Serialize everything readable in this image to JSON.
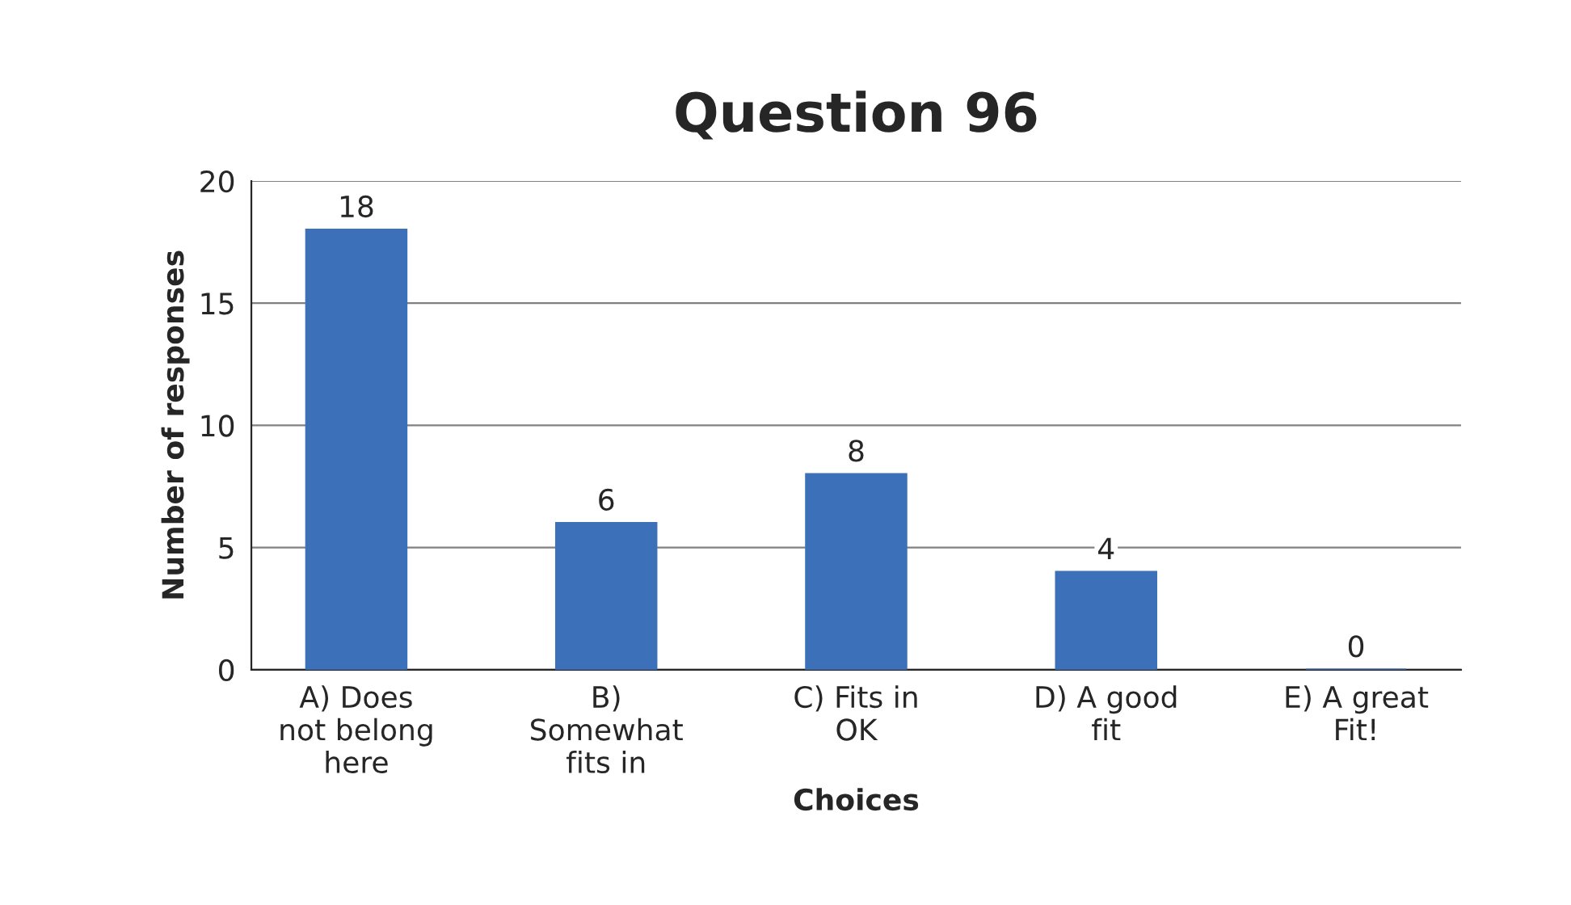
{
  "chart_data": {
    "type": "bar",
    "title": "Question 96",
    "xlabel": "Choices",
    "ylabel": "Number of responses",
    "categories": [
      "A) Does\nnot belong\nhere",
      "B)\nSomewhat\nfits in",
      "C) Fits in\nOK",
      "D) A good\nfit",
      "E) A great\nFit!"
    ],
    "values": [
      18,
      6,
      8,
      4,
      0
    ],
    "color": "#3c70b8",
    "ylim": [
      0,
      20
    ],
    "yticks": [
      0,
      5,
      10,
      15,
      20
    ],
    "grid": "y",
    "data_labels": true
  }
}
